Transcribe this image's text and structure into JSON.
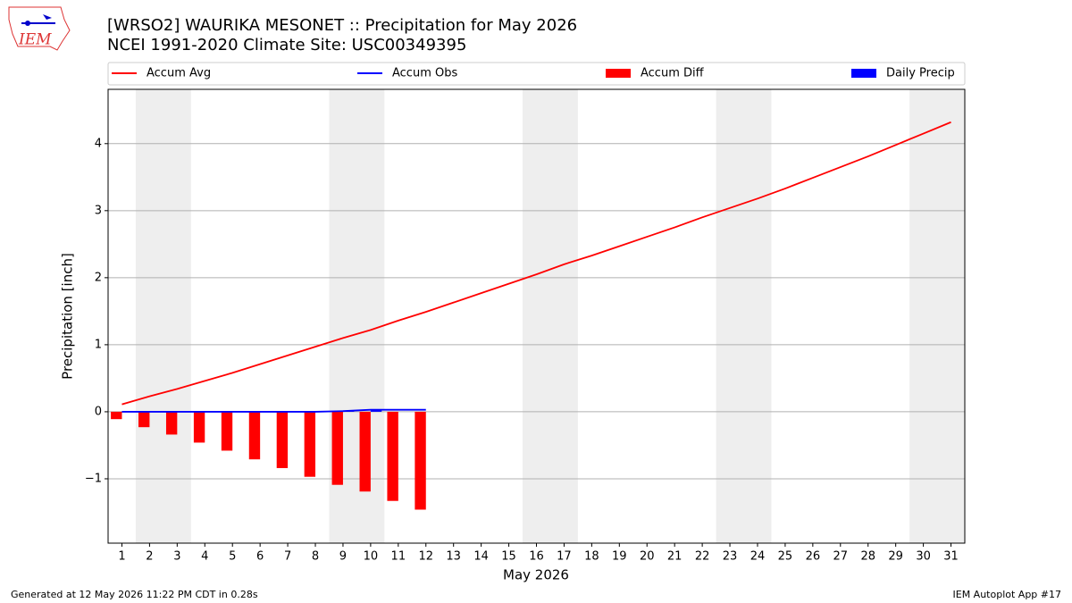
{
  "chart_data": {
    "type": "line",
    "title": "[WRSO2] WAURIKA MESONET :: Precipitation for May 2026",
    "subtitle": "NCEI 1991-2020 Climate Site: USC00349395",
    "xlabel": "May 2026",
    "ylabel": "Precipitation [inch]",
    "x": [
      1,
      2,
      3,
      4,
      5,
      6,
      7,
      8,
      9,
      10,
      11,
      12,
      13,
      14,
      15,
      16,
      17,
      18,
      19,
      20,
      21,
      22,
      23,
      24,
      25,
      26,
      27,
      28,
      29,
      30,
      31
    ],
    "xlim": [
      0.5,
      31.5
    ],
    "xticks": [
      1,
      2,
      3,
      4,
      5,
      6,
      7,
      8,
      9,
      10,
      11,
      12,
      13,
      14,
      15,
      16,
      17,
      18,
      19,
      20,
      21,
      22,
      23,
      24,
      25,
      26,
      27,
      28,
      29,
      30,
      31
    ],
    "ylim": [
      -1.96,
      4.81
    ],
    "yticks": [
      {
        "value": -1,
        "label": "−1"
      },
      0,
      1,
      2,
      3,
      4
    ],
    "grid": true,
    "shaded_spans": [
      [
        1.5,
        3.5
      ],
      [
        8.5,
        10.5
      ],
      [
        15.5,
        17.5
      ],
      [
        22.5,
        24.5
      ],
      [
        29.5,
        31.5
      ]
    ],
    "series": [
      {
        "name": "Accum Avg",
        "kind": "line",
        "color": "#ff0000",
        "values": [
          0.11,
          0.23,
          0.34,
          0.46,
          0.58,
          0.71,
          0.84,
          0.97,
          1.1,
          1.22,
          1.36,
          1.49,
          1.63,
          1.77,
          1.91,
          2.05,
          2.2,
          2.33,
          2.47,
          2.61,
          2.75,
          2.9,
          3.04,
          3.18,
          3.33,
          3.49,
          3.65,
          3.81,
          3.98,
          4.15,
          4.32
        ]
      },
      {
        "name": "Accum Obs",
        "kind": "line",
        "color": "#0000ff",
        "values": [
          0,
          0,
          0,
          0,
          0,
          0,
          0,
          0,
          0.01,
          0.03,
          0.03,
          0.03,
          null,
          null,
          null,
          null,
          null,
          null,
          null,
          null,
          null,
          null,
          null,
          null,
          null,
          null,
          null,
          null,
          null,
          null,
          null
        ]
      },
      {
        "name": "Accum Diff",
        "kind": "bar",
        "color": "#ff0000",
        "values": [
          -0.11,
          -0.23,
          -0.34,
          -0.46,
          -0.58,
          -0.71,
          -0.84,
          -0.97,
          -1.09,
          -1.19,
          -1.33,
          -1.46,
          null,
          null,
          null,
          null,
          null,
          null,
          null,
          null,
          null,
          null,
          null,
          null,
          null,
          null,
          null,
          null,
          null,
          null,
          null
        ]
      },
      {
        "name": "Daily Precip",
        "kind": "bar",
        "color": "#0000ff",
        "values": [
          0,
          0,
          0,
          0,
          0,
          0,
          0,
          0,
          0.01,
          0.02,
          0,
          0,
          null,
          null,
          null,
          null,
          null,
          null,
          null,
          null,
          null,
          null,
          null,
          null,
          null,
          null,
          null,
          null,
          null,
          null,
          null
        ]
      }
    ],
    "logo": "IEM",
    "footer_left": "Generated at 12 May 2026 11:22 PM CDT in 0.28s",
    "footer_right": "IEM Autoplot App #17"
  }
}
